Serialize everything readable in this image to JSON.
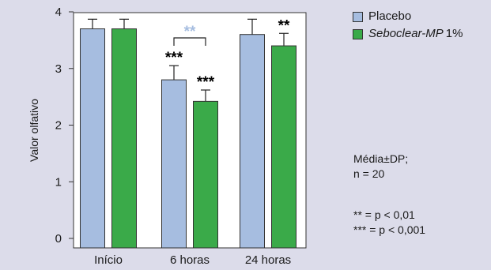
{
  "chart_data": {
    "type": "bar",
    "categories": [
      "Início",
      "6 horas",
      "24 horas"
    ],
    "series": [
      {
        "name": "Placebo",
        "values": [
          3.7,
          2.8,
          3.6
        ],
        "errors": [
          0.17,
          0.25,
          0.27
        ],
        "color": "#a6bde0"
      },
      {
        "name": "Seboclear-MP 1%",
        "values": [
          3.7,
          2.42,
          3.4
        ],
        "errors": [
          0.17,
          0.2,
          0.22
        ],
        "color": "#3aaa49"
      }
    ],
    "ylabel": "Valor olfativo",
    "ylim": [
      0,
      4
    ],
    "yticks": [
      0,
      1,
      2,
      3,
      4
    ],
    "grid": false,
    "legend_position": "top-right",
    "annotations": [
      {
        "text": "***",
        "category": "6 horas",
        "series": "Placebo",
        "color": "#000000"
      },
      {
        "text": "***",
        "category": "6 horas",
        "series": "Seboclear-MP 1%",
        "color": "#000000"
      },
      {
        "text": "**",
        "category": "24 horas",
        "series": "Seboclear-MP 1%",
        "color": "#000000"
      },
      {
        "text": "**",
        "category": "6 horas",
        "series": "bracket",
        "color": "#a6bde0"
      }
    ]
  },
  "legend": {
    "placebo_label": "Placebo",
    "treatment_name": "Seboclear-MP",
    "treatment_dose": "1%"
  },
  "notes": {
    "stats_line1": "Média±DP;",
    "stats_line2": "n = 20",
    "sig_line1": "** = p < 0,01",
    "sig_line2": "*** = p < 0,001"
  },
  "colors": {
    "placebo": "#a6bde0",
    "treatment": "#3aaa49",
    "background": "#dcdcea",
    "plot_background": "#ffffff"
  }
}
